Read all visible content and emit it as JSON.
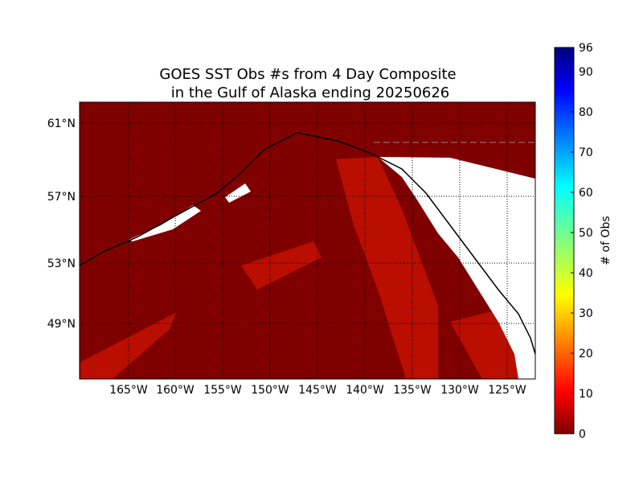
{
  "title_lines": [
    "GOES SST Obs #s from 4 Day Composite",
    "in the Gulf of Alaska ending 20250626"
  ],
  "map": {
    "lat_labels": [
      "61°N",
      "57°N",
      "53°N",
      "49°N"
    ],
    "lon_labels": [
      "165°W",
      "160°W",
      "155°W",
      "150°W",
      "145°W",
      "140°W",
      "135°W",
      "130°W",
      "125°W"
    ]
  },
  "colorbar": {
    "label": "# of Obs",
    "lim": [
      0,
      96
    ],
    "ticks": [
      0,
      10,
      20,
      30,
      40,
      50,
      60,
      70,
      80,
      90,
      96
    ]
  }
}
